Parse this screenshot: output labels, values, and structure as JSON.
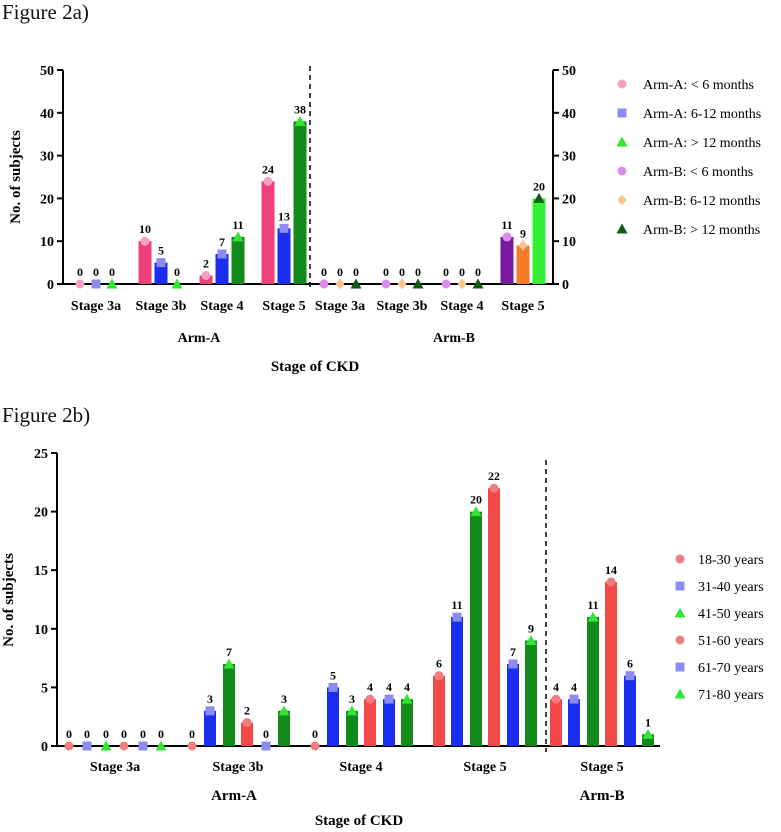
{
  "figures": [
    {
      "label": "Figure 2a)"
    },
    {
      "label": "Figure 2b)"
    }
  ],
  "chart_data": [
    {
      "type": "bar",
      "yticks": [
        0,
        10,
        20,
        30,
        40,
        50
      ],
      "ylim": [
        0,
        50
      ],
      "ylabel": "No. of subjects",
      "xlabel": "Stage of CKD",
      "group_labels": [
        "Arm-A",
        "Arm-B"
      ],
      "categories": [
        "Stage 3a",
        "Stage 3b",
        "Stage 4",
        "Stage 5",
        "Stage 3a",
        "Stage 3b",
        "Stage 4",
        "Stage 5"
      ],
      "series": [
        {
          "name": "Arm-A:  < 6 months",
          "color": "#f0407a",
          "marker": "circle",
          "marker_color": "#f4a0c0",
          "values": [
            0,
            10,
            2,
            24,
            null,
            null,
            null,
            null
          ]
        },
        {
          "name": "Arm-A:  6-12 months",
          "color": "#1a2ef0",
          "marker": "square",
          "marker_color": "#8c8cf0",
          "values": [
            0,
            5,
            7,
            13,
            null,
            null,
            null,
            null
          ]
        },
        {
          "name": "Arm-A:  > 12 months",
          "color": "#138a1c",
          "marker": "triangle",
          "marker_color": "#33e633",
          "values": [
            0,
            0,
            11,
            38,
            null,
            null,
            null,
            null
          ]
        },
        {
          "name": "Arm-B:  < 6 months",
          "color": "#7a1aa0",
          "marker": "circle",
          "marker_color": "#d98ee8",
          "values": [
            null,
            null,
            null,
            null,
            0,
            0,
            0,
            11
          ]
        },
        {
          "name": "Arm-B:  6-12 months",
          "color": "#f47c28",
          "marker": "diamond",
          "marker_color": "#f6c48c",
          "values": [
            null,
            null,
            null,
            null,
            0,
            0,
            0,
            9
          ]
        },
        {
          "name": "Arm-B:  > 12 months",
          "color": "#33f033",
          "marker": "triangle",
          "marker_color": "#0f5a14",
          "values": [
            null,
            null,
            null,
            null,
            0,
            0,
            0,
            20
          ]
        }
      ]
    },
    {
      "type": "bar",
      "yticks": [
        0,
        5,
        10,
        15,
        20,
        25
      ],
      "ylim": [
        0,
        25
      ],
      "ylabel": "No. of subjects",
      "xlabel": "Stage of CKD",
      "group_labels": [
        "Arm-A",
        "Arm-B"
      ],
      "categories": [
        "Stage 3a",
        "Stage 3b",
        "Stage 4",
        "Stage 5",
        "Stage 5"
      ],
      "series": [
        {
          "name": "18-30 years",
          "color": "#f24848",
          "marker": "circle",
          "marker_color": "#ef7f7f",
          "values": [
            0,
            0,
            0,
            6,
            4
          ]
        },
        {
          "name": "31-40 years",
          "color": "#1a2ef0",
          "marker": "square",
          "marker_color": "#8c8cf0",
          "values": [
            0,
            3,
            5,
            11,
            4
          ]
        },
        {
          "name": "41-50 years",
          "color": "#138a1c",
          "marker": "triangle",
          "marker_color": "#33e633",
          "values": [
            0,
            7,
            3,
            20,
            11
          ]
        },
        {
          "name": "51-60 years",
          "color": "#f24848",
          "marker": "circle",
          "marker_color": "#ef7f7f",
          "values": [
            0,
            2,
            4,
            22,
            14
          ]
        },
        {
          "name": "61-70 years",
          "color": "#1a2ef0",
          "marker": "square",
          "marker_color": "#8c8cf0",
          "values": [
            0,
            0,
            4,
            7,
            6
          ]
        },
        {
          "name": "71-80 years",
          "color": "#138a1c",
          "marker": "triangle",
          "marker_color": "#33e633",
          "values": [
            0,
            3,
            4,
            9,
            1
          ]
        }
      ]
    }
  ]
}
